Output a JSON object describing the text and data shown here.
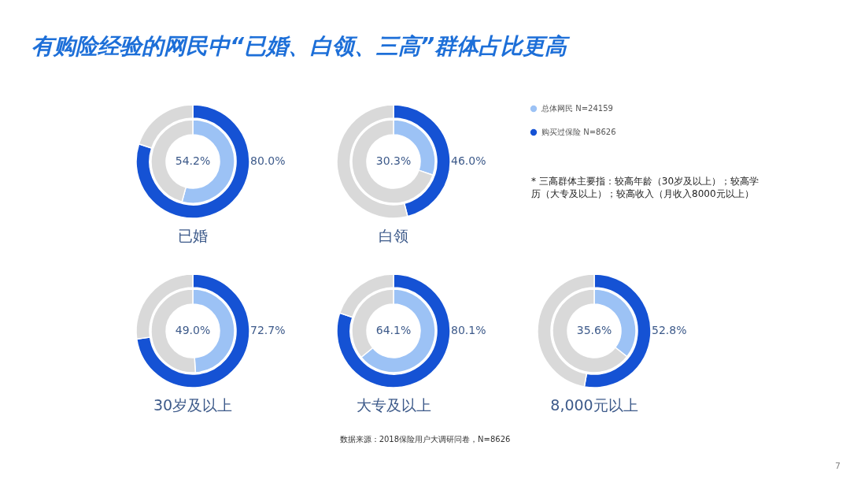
{
  "chart_data": [
    {
      "type": "other",
      "title": "有购险经验的网民中“已婚、白领、三高”群体占比更高",
      "annotations": [
        "* 三高群体主要指：较高年龄（30岁及以上）；较高学历（大专及以上）；较高收入（月收入8000元以上）",
        "数据来源：2018保险用户大调研问卷，N=8626",
        "7"
      ]
    },
    {
      "type": "donut",
      "title": "已婚",
      "categories": [
        null,
        null
      ],
      "series": [
        {
          "values": [
            54.2,
            45.8
          ],
          "colors": [
            "#9cc2f5",
            "#d9d9d9"
          ],
          "value_labels": [
            "54.2%",
            null
          ]
        },
        {
          "values": [
            80.0,
            20.0
          ],
          "colors": [
            "#1552d4",
            "#d9d9d9"
          ],
          "value_labels": [
            "80.0%",
            null
          ]
        }
      ]
    },
    {
      "type": "donut",
      "title": "白领",
      "categories": [
        null,
        null
      ],
      "legend": "right",
      "series": [
        {
          "name": "总体网民 N=24159",
          "values": [
            30.3,
            69.7
          ],
          "colors": [
            "#9cc2f5",
            "#d9d9d9"
          ],
          "value_labels": [
            "30.3%",
            null
          ]
        },
        {
          "name": "购买过保险 N=8626",
          "values": [
            46.0,
            54.0
          ],
          "colors": [
            "#1552d4",
            "#d9d9d9"
          ],
          "value_labels": [
            "46.0%",
            null
          ]
        }
      ]
    },
    {
      "type": "donut",
      "title": "30岁及以上",
      "categories": [
        null,
        null
      ],
      "series": [
        {
          "values": [
            49.0,
            51.0
          ],
          "colors": [
            "#9cc2f5",
            "#d9d9d9"
          ],
          "value_labels": [
            "49.0%",
            null
          ]
        },
        {
          "values": [
            72.7,
            27.3
          ],
          "colors": [
            "#1552d4",
            "#d9d9d9"
          ],
          "value_labels": [
            "72.7%",
            null
          ]
        }
      ]
    },
    {
      "type": "donut",
      "title": "大专及以上",
      "categories": [
        null,
        null
      ],
      "series": [
        {
          "values": [
            64.1,
            35.9
          ],
          "colors": [
            "#9cc2f5",
            "#d9d9d9"
          ],
          "value_labels": [
            "64.1%",
            null
          ]
        },
        {
          "values": [
            80.1,
            19.9
          ],
          "colors": [
            "#1552d4",
            "#d9d9d9"
          ],
          "value_labels": [
            "80.1%",
            null
          ]
        }
      ]
    },
    {
      "type": "donut",
      "title": "8,000元以上",
      "categories": [
        null,
        null
      ],
      "series": [
        {
          "values": [
            35.6,
            64.4
          ],
          "colors": [
            "#9cc2f5",
            "#d9d9d9"
          ],
          "value_labels": [
            "35.6%",
            null
          ]
        },
        {
          "values": [
            52.8,
            47.2
          ],
          "colors": [
            "#1552d4",
            "#d9d9d9"
          ],
          "value_labels": [
            "52.8%",
            null
          ]
        }
      ]
    }
  ]
}
